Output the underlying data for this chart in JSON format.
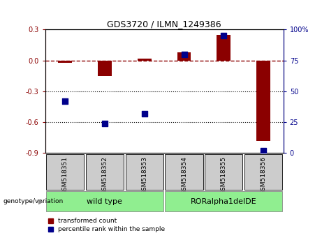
{
  "title": "GDS3720 / ILMN_1249386",
  "samples": [
    "GSM518351",
    "GSM518352",
    "GSM518353",
    "GSM518354",
    "GSM518355",
    "GSM518356"
  ],
  "red_bars": [
    -0.02,
    -0.15,
    0.02,
    0.08,
    0.25,
    -0.78
  ],
  "blue_dots": [
    42,
    24,
    32,
    80,
    95,
    2
  ],
  "left_ylim": [
    -0.9,
    0.3
  ],
  "right_ylim": [
    0,
    100
  ],
  "left_yticks": [
    0.3,
    0.0,
    -0.3,
    -0.6,
    -0.9
  ],
  "right_yticks": [
    100,
    75,
    50,
    25,
    0
  ],
  "hline_y": 0.0,
  "dotted_lines": [
    -0.3,
    -0.6
  ],
  "group_box_color": "#90EE90",
  "sample_box_color": "#CCCCCC",
  "red_color": "#8B0000",
  "blue_color": "#00008B",
  "legend_red": "transformed count",
  "legend_blue": "percentile rank within the sample",
  "genotype_label": "genotype/variation",
  "bar_width": 0.35,
  "dot_size": 35,
  "background_color": "#FFFFFF",
  "group1_label": "wild type",
  "group2_label": "RORalpha1delDE"
}
